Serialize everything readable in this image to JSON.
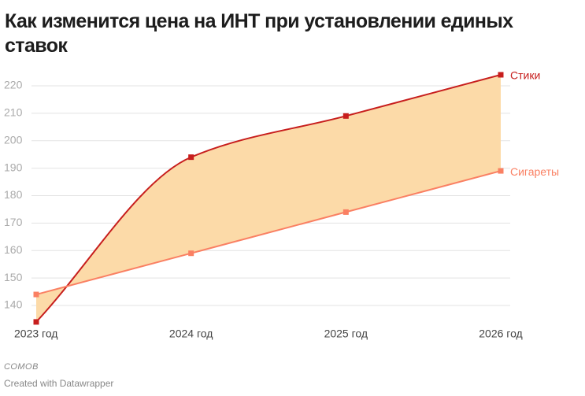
{
  "chart_data": {
    "type": "line",
    "title": "Как изменится цена на ИНТ при установлении единых ставок",
    "categories": [
      "2023 год",
      "2024 год",
      "2025 год",
      "2026 год"
    ],
    "series": [
      {
        "name": "Стики",
        "color": "#c71e1d",
        "values": [
          134,
          194,
          209,
          224
        ]
      },
      {
        "name": "Сигареты",
        "color": "#fa8063",
        "values": [
          144,
          159,
          174,
          189
        ]
      }
    ],
    "area_color": "#fcdaa8",
    "ylim": [
      133,
      224
    ],
    "yticks": [
      140,
      150,
      160,
      170,
      180,
      190,
      200,
      210,
      220
    ],
    "grid": true,
    "source": "СОМОВ",
    "credit": "Created with Datawrapper"
  }
}
